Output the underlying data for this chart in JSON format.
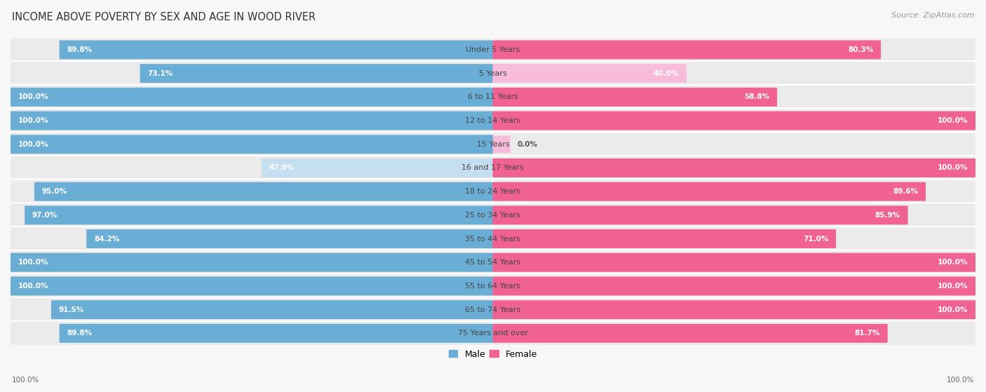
{
  "title": "INCOME ABOVE POVERTY BY SEX AND AGE IN WOOD RIVER",
  "source": "Source: ZipAtlas.com",
  "categories": [
    "Under 5 Years",
    "5 Years",
    "6 to 11 Years",
    "12 to 14 Years",
    "15 Years",
    "16 and 17 Years",
    "18 to 24 Years",
    "25 to 34 Years",
    "35 to 44 Years",
    "45 to 54 Years",
    "55 to 64 Years",
    "65 to 74 Years",
    "75 Years and over"
  ],
  "male_values": [
    89.8,
    73.1,
    100.0,
    100.0,
    100.0,
    47.9,
    95.0,
    97.0,
    84.2,
    100.0,
    100.0,
    91.5,
    89.8
  ],
  "female_values": [
    80.3,
    40.0,
    58.8,
    100.0,
    0.0,
    100.0,
    89.6,
    85.9,
    71.0,
    100.0,
    100.0,
    100.0,
    81.7
  ],
  "male_color": "#6aaed6",
  "female_color": "#f06292",
  "male_color_light": "#c5dff0",
  "female_color_light": "#f8bbd9",
  "male_label": "Male",
  "female_label": "Female",
  "row_bg_color": "#ebebeb",
  "title_fontsize": 10.5,
  "source_fontsize": 8,
  "cat_fontsize": 8,
  "value_fontsize": 7.5
}
